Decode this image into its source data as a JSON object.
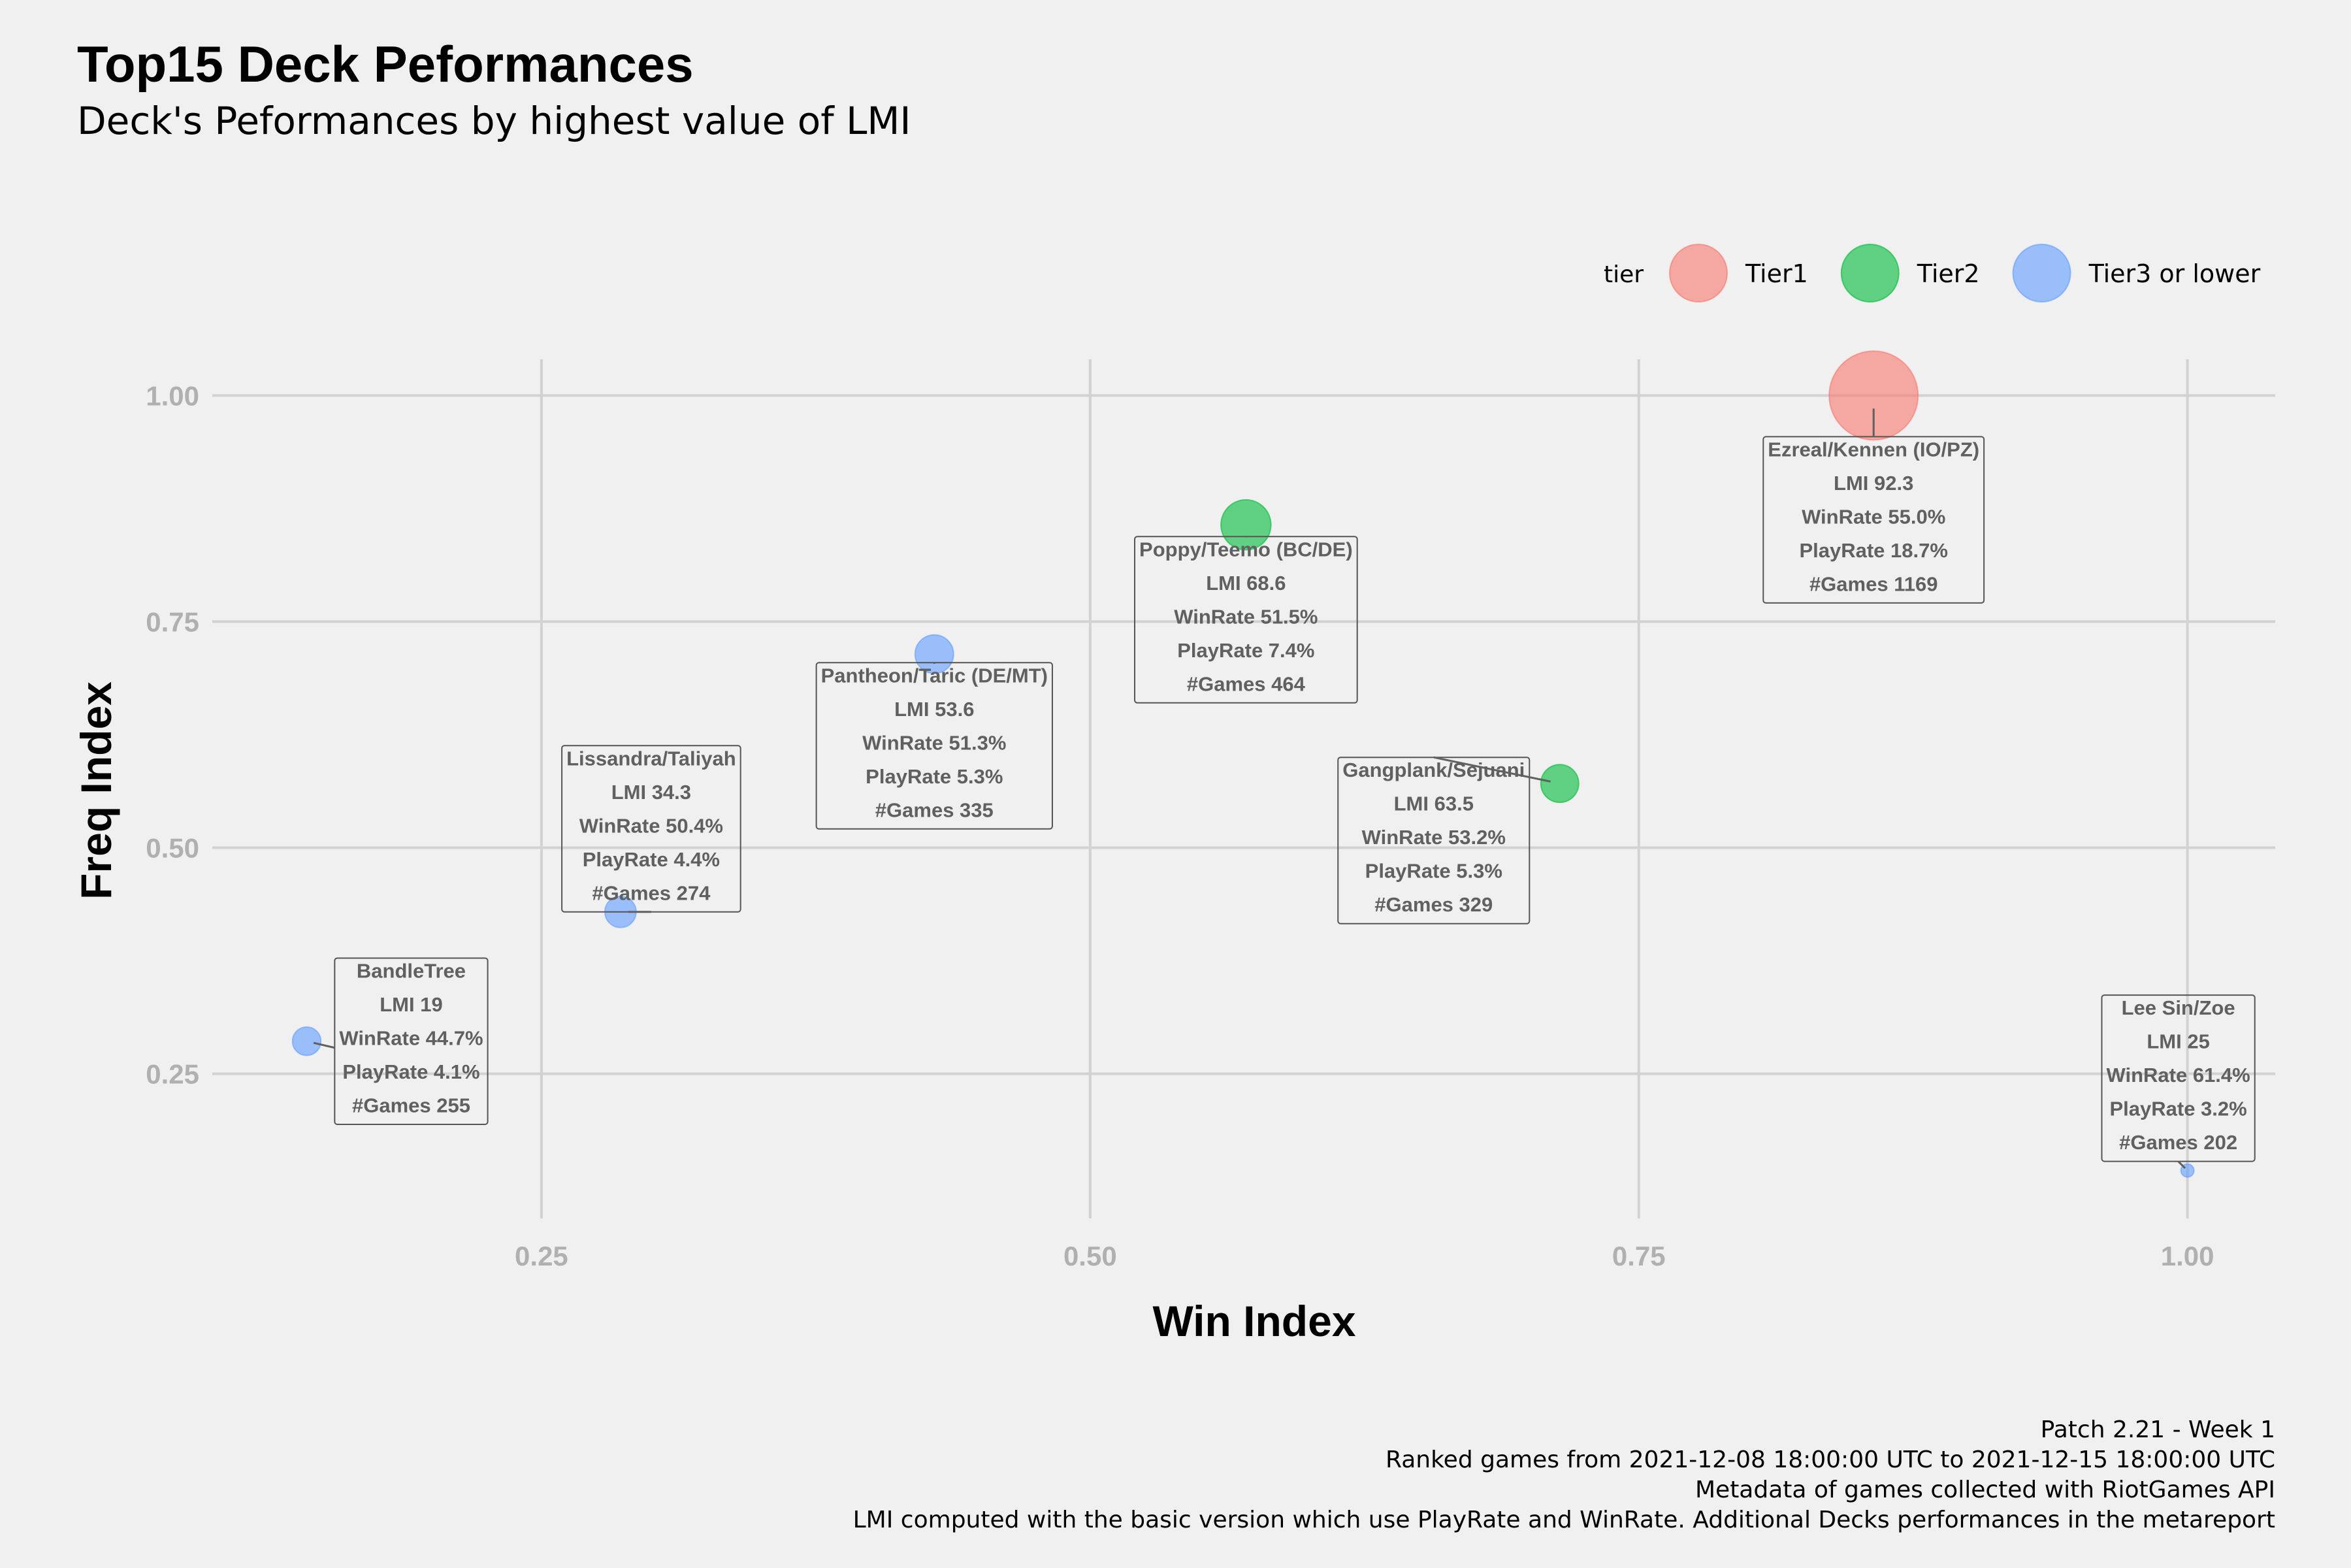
{
  "chart_data": {
    "type": "scatter",
    "title": "Top15 Deck Peformances",
    "subtitle": "Deck's Peformances by highest value of LMI",
    "xlabel": "Win Index",
    "ylabel": "Freq Index",
    "xlim": [
      0.1,
      1.04
    ],
    "ylim": [
      0.09,
      1.04
    ],
    "x_ticks": [
      {
        "value": 0.25,
        "label": "0.25"
      },
      {
        "value": 0.5,
        "label": "0.50"
      },
      {
        "value": 0.75,
        "label": "0.75"
      },
      {
        "value": 1.0,
        "label": "1.00"
      }
    ],
    "y_ticks": [
      {
        "value": 0.25,
        "label": "0.25"
      },
      {
        "value": 0.5,
        "label": "0.50"
      },
      {
        "value": 0.75,
        "label": "0.75"
      },
      {
        "value": 1.0,
        "label": "1.00"
      }
    ],
    "grid": true,
    "legend": {
      "title": "tier",
      "position": "top-right",
      "items": [
        {
          "label": "Tier1",
          "color": "#F8766D"
        },
        {
          "label": "Tier2",
          "color": "#00BA38"
        },
        {
          "label": "Tier3 or lower",
          "color": "#619CFF"
        }
      ]
    },
    "points": [
      {
        "deck": "Ezreal/Kennen (IO/PZ)",
        "x": 0.857,
        "y": 1.0,
        "tier": "Tier1",
        "lmi": "LMI 92.3",
        "winrate": "WinRate 55.0%",
        "playrate": "PlayRate 18.7%",
        "games": "#Games 1169"
      },
      {
        "deck": "Poppy/Teemo (BC/DE)",
        "x": 0.571,
        "y": 0.857,
        "tier": "Tier2",
        "lmi": "LMI 68.6",
        "winrate": "WinRate 51.5%",
        "playrate": "PlayRate 7.4%",
        "games": "#Games 464"
      },
      {
        "deck": "Gangplank/Sejuani",
        "x": 0.714,
        "y": 0.571,
        "tier": "Tier2",
        "lmi": "LMI 63.5",
        "winrate": "WinRate 53.2%",
        "playrate": "PlayRate 5.3%",
        "games": "#Games 329"
      },
      {
        "deck": "Pantheon/Taric (DE/MT)",
        "x": 0.429,
        "y": 0.714,
        "tier": "Tier3 or lower",
        "lmi": "LMI 53.6",
        "winrate": "WinRate 51.3%",
        "playrate": "PlayRate 5.3%",
        "games": "#Games 335"
      },
      {
        "deck": "Lissandra/Taliyah",
        "x": 0.286,
        "y": 0.429,
        "tier": "Tier3 or lower",
        "lmi": "LMI 34.3",
        "winrate": "WinRate 50.4%",
        "playrate": "PlayRate 4.4%",
        "games": "#Games 274"
      },
      {
        "deck": "Lee Sin/Zoe",
        "x": 1.0,
        "y": 0.143,
        "tier": "Tier3 or lower",
        "lmi": "LMI 25",
        "winrate": "WinRate 61.4%",
        "playrate": "PlayRate 3.2%",
        "games": "#Games 202"
      },
      {
        "deck": "BandleTree",
        "x": 0.143,
        "y": 0.286,
        "tier": "Tier3 or lower",
        "lmi": "LMI 19",
        "winrate": "WinRate 44.7%",
        "playrate": "PlayRate 4.1%",
        "games": "#Games 255"
      }
    ],
    "caption": [
      "Patch 2.21 - Week 1",
      "Ranked games from 2021-12-08 18:00:00 UTC to 2021-12-15 18:00:00 UTC",
      "Metadata of games collected with RiotGames API",
      "LMI computed with the basic version which use PlayRate and WinRate. Additional Decks performances in the metareport"
    ]
  }
}
